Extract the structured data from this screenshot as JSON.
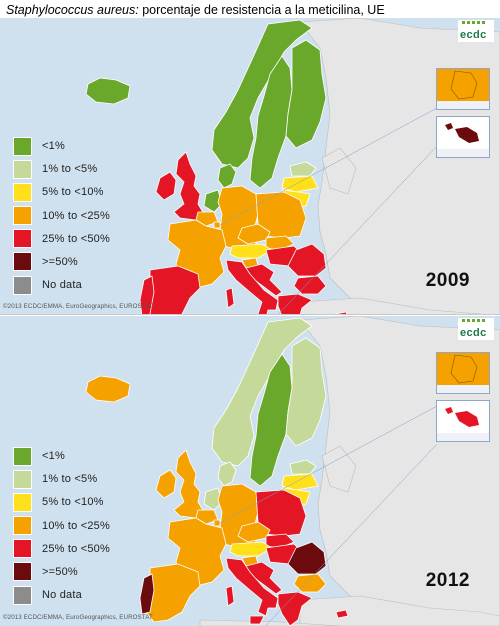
{
  "title": {
    "italic": "Staphylococcus aureus:",
    "rest": " porcentaje de resistencia a la meticilina, UE"
  },
  "legend": [
    {
      "label": "<1%",
      "color": "#6aa82c"
    },
    {
      "label": "1% to <5%",
      "color": "#c4d99a"
    },
    {
      "label": "5% to <10%",
      "color": "#ffe01a"
    },
    {
      "label": "10% to <25%",
      "color": "#f5a200"
    },
    {
      "label": "25% to <50%",
      "color": "#e41525"
    },
    {
      "label": ">=50%",
      "color": "#6b0b0e"
    },
    {
      "label": "No data",
      "color": "#8c8c8c"
    }
  ],
  "insets": {
    "luxembourg": "Luxembourg",
    "malta": "Malta"
  },
  "copyright": "©2013 ECDC/EMMA, EuroGeographics, EUROSTAT",
  "logo_text": "ecdc",
  "panels": [
    {
      "year": "2009",
      "countries": {
        "iceland": "<1%",
        "ireland": "25% to <50%",
        "uk": "25% to <50%",
        "norway": "<1%",
        "sweden": "<1%",
        "finland": "<1%",
        "denmark": "<1%",
        "netherlands": "<1%",
        "estonia": "1% to <5%",
        "latvia": "5% to <10%",
        "lithuania": "5% to <10%",
        "poland": "10% to <25%",
        "germany": "10% to <25%",
        "belgium": "10% to <25%",
        "luxembourg": "10% to <25%",
        "france": "10% to <25%",
        "czech": "10% to <25%",
        "slovakia": "10% to <25%",
        "austria": "5% to <10%",
        "hungary": "25% to <50%",
        "slovenia": "10% to <25%",
        "croatia": "25% to <50%",
        "romania": "25% to <50%",
        "bulgaria": "25% to <50%",
        "greece": "25% to <50%",
        "italy": "25% to <50%",
        "spain": "25% to <50%",
        "portugal": "25% to <50%",
        "malta": ">=50%",
        "cyprus": "25% to <50%"
      }
    },
    {
      "year": "2012",
      "countries": {
        "iceland": "10% to <25%",
        "ireland": "10% to <25%",
        "uk": "10% to <25%",
        "norway": "1% to <5%",
        "sweden": "<1%",
        "finland": "1% to <5%",
        "denmark": "1% to <5%",
        "netherlands": "1% to <5%",
        "estonia": "1% to <5%",
        "latvia": "5% to <10%",
        "lithuania": "5% to <10%",
        "poland": "25% to <50%",
        "germany": "10% to <25%",
        "belgium": "10% to <25%",
        "luxembourg": "10% to <25%",
        "france": "10% to <25%",
        "czech": "10% to <25%",
        "slovakia": "25% to <50%",
        "austria": "5% to <10%",
        "hungary": "25% to <50%",
        "slovenia": "10% to <25%",
        "croatia": "25% to <50%",
        "romania": ">=50%",
        "bulgaria": "10% to <25%",
        "greece": "25% to <50%",
        "italy": "25% to <50%",
        "spain": "10% to <25%",
        "portugal": ">=50%",
        "malta": "25% to <50%",
        "cyprus": "25% to <50%"
      }
    }
  ]
}
